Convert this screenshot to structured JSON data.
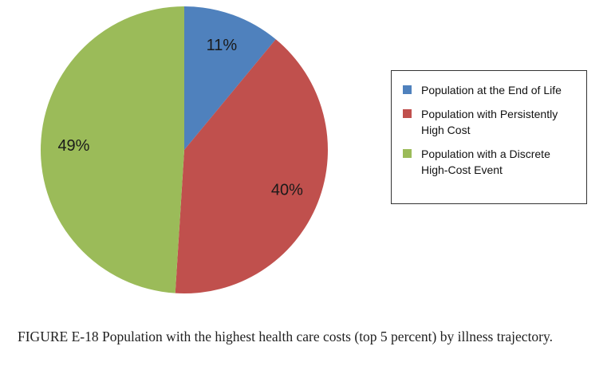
{
  "chart_data": {
    "type": "pie",
    "categories": [
      "Population at the End of Life",
      "Population with Persistently High Cost",
      "Population with a Discrete High-Cost Event"
    ],
    "values": [
      11,
      40,
      49
    ],
    "value_labels": [
      "11%",
      "40%",
      "49%"
    ],
    "colors": [
      "#4f81bd",
      "#c0504d",
      "#9bbb59"
    ],
    "legend": "right"
  },
  "caption": {
    "label": "FIGURE E-18",
    "text": "Population with the highest health care costs (top 5 percent) by ill­ness trajectory."
  }
}
